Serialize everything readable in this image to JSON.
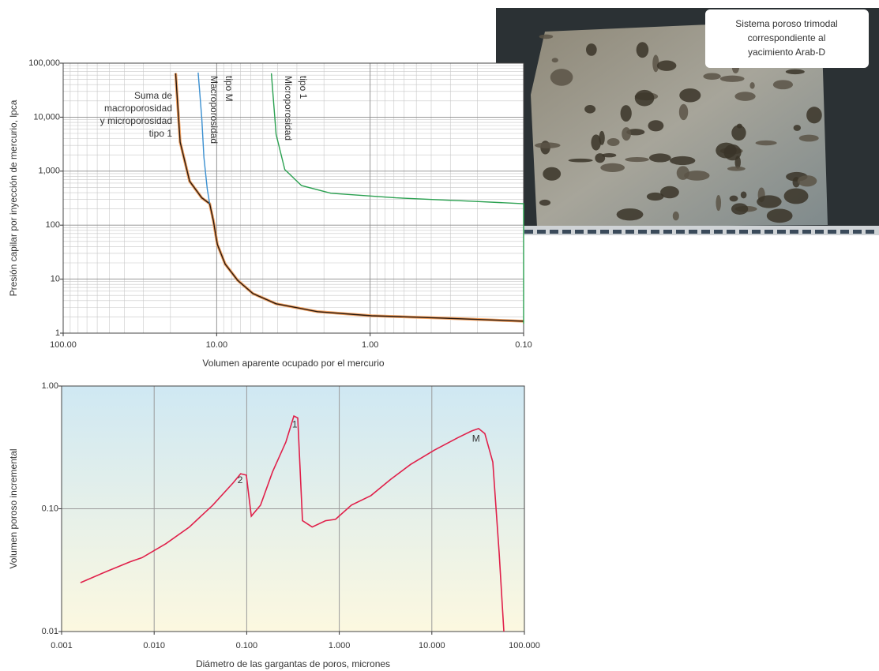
{
  "photo": {
    "caption": [
      "Sistema poroso trimodal",
      "correspondiente al",
      "yacimiento Arab-D"
    ]
  },
  "chart_data": [
    {
      "type": "line",
      "log_x": true,
      "log_y": true,
      "grid": true,
      "minor_grid": true,
      "x_label": "Volumen aparente ocupado por el mercurio",
      "y_label": "Presión capilar por inyección de mercurio, lpca",
      "xlim": [
        100,
        0.1
      ],
      "xticks": [
        {
          "value": 100,
          "label": "100.00"
        },
        {
          "value": 10,
          "label": "10.00"
        },
        {
          "value": 1,
          "label": "1.00"
        },
        {
          "value": 0.1,
          "label": "0.10"
        }
      ],
      "ylim": [
        1,
        100000
      ],
      "yticks": [
        1,
        10,
        100,
        {
          "value": 1000,
          "label": "1,000"
        },
        {
          "value": 10000,
          "label": "10,000"
        },
        {
          "value": 100000,
          "label": "100,000"
        }
      ],
      "series": [
        {
          "name": [
            "Suma de",
            "macroporosidad",
            "y microporosidad",
            "tipo 1"
          ],
          "color": "#2a1a10",
          "outline_color": "#f0a060",
          "x": [
            18.5,
            17.3,
            15.0,
            12.5,
            11.1,
            10.5,
            9.9,
            8.8,
            7.3,
            5.8,
            4.1,
            2.2,
            0.98,
            0.34,
            0.1
          ],
          "values": [
            65000,
            3450,
            650,
            320,
            250,
            120,
            44,
            19,
            9.5,
            5.4,
            3.5,
            2.5,
            2.1,
            1.9,
            1.66
          ]
        },
        {
          "name": [
            "Macroporosidad",
            "tipo M"
          ],
          "color": "#3a8fd0",
          "x": [
            13.2,
            12.5,
            12.1,
            11.5,
            11.1
          ],
          "values": [
            67000,
            9500,
            1800,
            460,
            250
          ]
        },
        {
          "name": [
            "Microporosidad",
            "tipo 1"
          ],
          "color": "#2aa050",
          "x": [
            4.4,
            4.1,
            3.6,
            2.8,
            1.8,
            0.68,
            0.21,
            0.1,
            0.1
          ],
          "values": [
            65000,
            4800,
            1070,
            540,
            390,
            320,
            275,
            250,
            1.5
          ]
        }
      ]
    },
    {
      "type": "line",
      "log_x": true,
      "log_y": true,
      "grid": true,
      "x_label": "Diámetro de las gargantas de poros, micrones",
      "y_label": "Volumen poroso incremental",
      "xlim": [
        0.001,
        100
      ],
      "xticks": [
        0.001,
        {
          "value": 0.01,
          "label": "0.010"
        },
        {
          "value": 0.1,
          "label": "0.100"
        },
        {
          "value": 1,
          "label": "1.000"
        },
        {
          "value": 10,
          "label": "10.000"
        },
        {
          "value": 100,
          "label": "100.000"
        }
      ],
      "ylim": [
        0.01,
        1
      ],
      "yticks": [
        0.01,
        {
          "value": 0.1,
          "label": "0.10"
        },
        {
          "value": 1,
          "label": "1.00"
        }
      ],
      "series": [
        {
          "color": "#e0204a",
          "x": [
            0.0016,
            0.0031,
            0.0055,
            0.0074,
            0.0134,
            0.024,
            0.043,
            0.071,
            0.086,
            0.099,
            0.112,
            0.141,
            0.19,
            0.265,
            0.323,
            0.356,
            0.4,
            0.51,
            0.71,
            0.91,
            1.35,
            2.2,
            3.6,
            5.9,
            10.6,
            19.2,
            26.8,
            32.0,
            37.4,
            45.6,
            53.3,
            60.0
          ],
          "values": [
            0.025,
            0.031,
            0.037,
            0.04,
            0.052,
            0.071,
            0.107,
            0.162,
            0.193,
            0.188,
            0.087,
            0.107,
            0.2,
            0.35,
            0.57,
            0.55,
            0.08,
            0.071,
            0.08,
            0.082,
            0.107,
            0.128,
            0.174,
            0.23,
            0.3,
            0.38,
            0.43,
            0.45,
            0.41,
            0.24,
            0.044,
            0.01
          ]
        }
      ],
      "annotations": [
        {
          "text": "1",
          "x": 0.33,
          "y": 0.48
        },
        {
          "text": "2",
          "x": 0.085,
          "y": 0.17
        },
        {
          "text": "M",
          "x": 30,
          "y": 0.37
        }
      ]
    }
  ]
}
